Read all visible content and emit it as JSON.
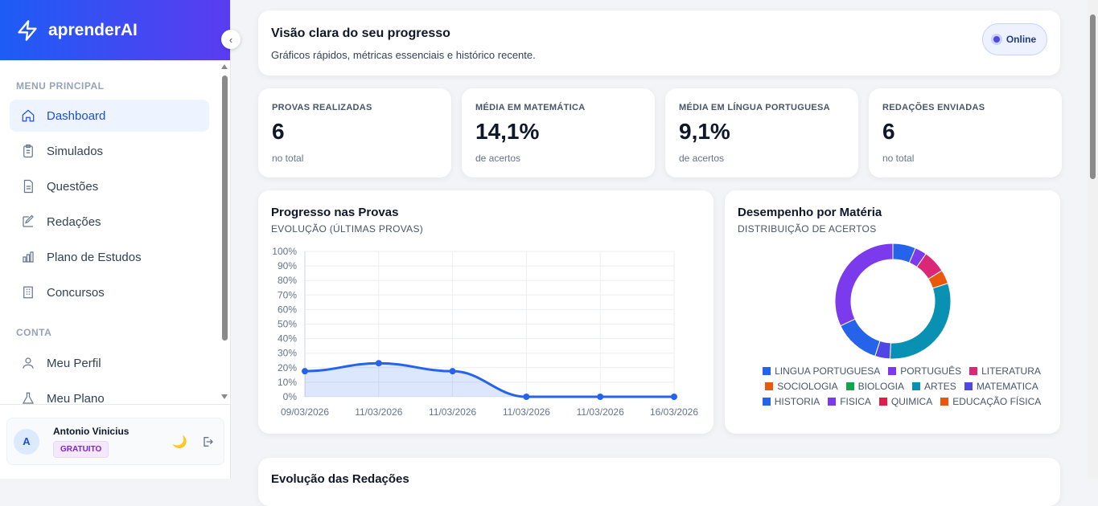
{
  "brand": {
    "name": "aprenderAI"
  },
  "sidebar": {
    "section_main": "MENU PRINCIPAL",
    "section_account": "CONTA",
    "items": [
      {
        "label": "Dashboard",
        "icon": "home-icon"
      },
      {
        "label": "Simulados",
        "icon": "clipboard-icon"
      },
      {
        "label": "Questões",
        "icon": "file-icon"
      },
      {
        "label": "Redações",
        "icon": "edit-icon"
      },
      {
        "label": "Plano de Estudos",
        "icon": "bar-chart-icon"
      },
      {
        "label": "Concursos",
        "icon": "building-icon"
      }
    ],
    "account_items": [
      {
        "label": "Meu Perfil",
        "icon": "user-icon"
      },
      {
        "label": "Meu Plano",
        "icon": "flask-icon"
      }
    ]
  },
  "user": {
    "initial": "A",
    "name": "Antonio Vinicius",
    "plan": "GRATUITO"
  },
  "header": {
    "title": "Visão clara do seu progresso",
    "subtitle": "Gráficos rápidos, métricas essenciais e histórico recente.",
    "status": "Online"
  },
  "stats": [
    {
      "label": "PROVAS REALIZADAS",
      "value": "6",
      "sub": "no total"
    },
    {
      "label": "MÉDIA EM MATEMÁTICA",
      "value": "14,1%",
      "sub": "de acertos"
    },
    {
      "label": "MÉDIA EM LÍNGUA PORTUGUESA",
      "value": "9,1%",
      "sub": "de acertos"
    },
    {
      "label": "REDAÇÕES ENVIADAS",
      "value": "6",
      "sub": "no total"
    }
  ],
  "next_section": {
    "title": "Evolução das Redações"
  },
  "chart_data": [
    {
      "type": "area",
      "title": "Progresso nas Provas",
      "subtitle": "EVOLUÇÃO (ÚLTIMAS PROVAS)",
      "categories": [
        "09/03/2026",
        "11/03/2026",
        "11/03/2026",
        "11/03/2026",
        "11/03/2026",
        "16/03/2026"
      ],
      "values": [
        17.6,
        23.1,
        17.6,
        0,
        0,
        0
      ],
      "ylim": [
        0,
        100
      ],
      "yticks": [
        "0%",
        "10%",
        "20%",
        "30%",
        "40%",
        "50%",
        "60%",
        "70%",
        "80%",
        "90%",
        "100%"
      ],
      "grid": true,
      "color": "#2563eb"
    },
    {
      "type": "pie",
      "title": "Desempenho por Matéria",
      "subtitle": "DISTRIBUIÇÃO DE ACERTOS",
      "legend": "bottom",
      "slices": [
        {
          "name": "LINGUA PORTUGUESA",
          "value": 6.4,
          "color": "#2563eb"
        },
        {
          "name": "PORTUGUÊS",
          "value": 3.3,
          "color": "#7c3aed"
        },
        {
          "name": "LITERATURA",
          "value": 6.4,
          "color": "#db2777"
        },
        {
          "name": "SOCIOLOGIA",
          "value": 3.9,
          "color": "#ea580c"
        },
        {
          "name": "BIOLOGIA",
          "value": 0,
          "color": "#16a34a"
        },
        {
          "name": "ARTES",
          "value": 30.8,
          "color": "#0891b2"
        },
        {
          "name": "MATEMATICA",
          "value": 4.2,
          "color": "#4f46e5"
        },
        {
          "name": "HISTORIA",
          "value": 13,
          "color": "#2563eb"
        },
        {
          "name": "FISICA",
          "value": 32,
          "color": "#7c3aed"
        },
        {
          "name": "QUIMICA",
          "value": 0,
          "color": "#e11d48"
        },
        {
          "name": "EDUCAÇÃO FÍSICA",
          "value": 0,
          "color": "#ea580c"
        }
      ]
    }
  ]
}
